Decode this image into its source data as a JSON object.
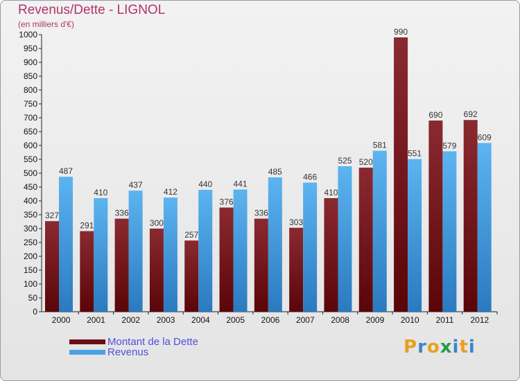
{
  "chart_data": {
    "type": "bar",
    "title": "Revenus/Dette - LIGNOL",
    "subtitle": "(en milliers d'€)",
    "categories": [
      "2000",
      "2001",
      "2002",
      "2003",
      "2004",
      "2005",
      "2006",
      "2007",
      "2008",
      "2009",
      "2010",
      "2011",
      "2012"
    ],
    "series": [
      {
        "name": "Montant de la Dette",
        "values": [
          327,
          291,
          336,
          300,
          257,
          376,
          336,
          303,
          410,
          520,
          990,
          690,
          692
        ],
        "color": "#6b0f14"
      },
      {
        "name": "Revenus",
        "values": [
          487,
          410,
          437,
          412,
          440,
          441,
          485,
          466,
          525,
          581,
          551,
          579,
          609
        ],
        "color": "#4aa3e6"
      }
    ],
    "ylim": [
      0,
      1000
    ],
    "ytick_step": 50,
    "grid": false,
    "legend_position": "bottom-left"
  },
  "logo": {
    "letters": [
      "P",
      "r",
      "o",
      "x",
      "i",
      "t",
      "i"
    ],
    "colors": [
      "#e8a020",
      "#3a86c8",
      "#e8a020",
      "#2a9a4a",
      "#3a86c8",
      "#e8a020",
      "#3a86c8"
    ]
  }
}
